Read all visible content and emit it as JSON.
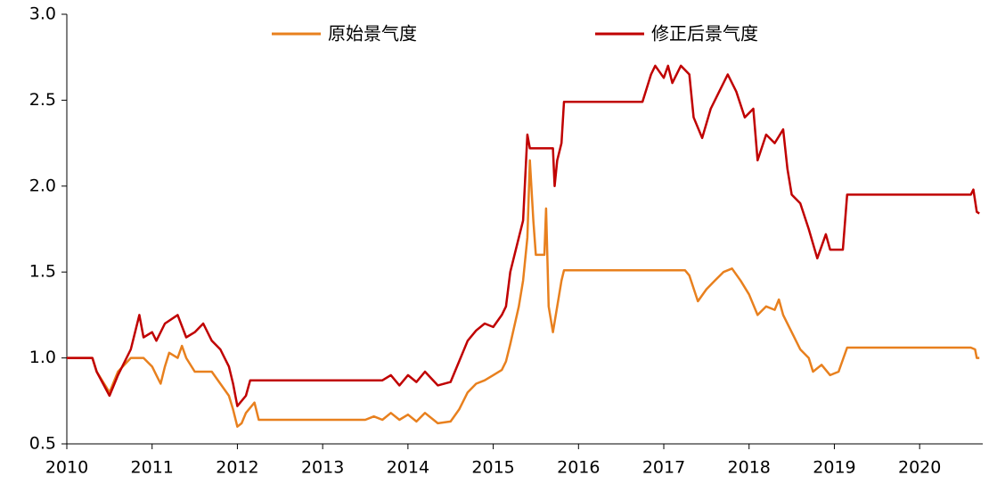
{
  "chart_data": {
    "type": "line",
    "xlim": [
      2010,
      2020.74
    ],
    "xticks": [
      2010,
      2011,
      2012,
      2013,
      2014,
      2015,
      2016,
      2017,
      2018,
      2019,
      2020
    ],
    "ylim": [
      0.5,
      3.0
    ],
    "yticks": [
      {
        "value": 0.5,
        "label": "0.5"
      },
      {
        "value": 1.0,
        "label": "1.0"
      },
      {
        "value": 1.5,
        "label": "1.5"
      },
      {
        "value": 2.0,
        "label": "2.0"
      },
      {
        "value": 2.5,
        "label": "2.5"
      },
      {
        "value": 3.0,
        "label": "3.0"
      }
    ],
    "series": [
      {
        "name": "原始景气度",
        "color": "#e8801e",
        "x": [
          2010.0,
          2010.3,
          2010.35,
          2010.5,
          2010.6,
          2010.75,
          2010.9,
          2011.0,
          2011.05,
          2011.1,
          2011.15,
          2011.2,
          2011.3,
          2011.35,
          2011.4,
          2011.5,
          2011.7,
          2011.8,
          2011.9,
          2011.95,
          2012.0,
          2012.05,
          2012.1,
          2012.2,
          2012.25,
          2013.5,
          2013.6,
          2013.7,
          2013.8,
          2013.9,
          2014.0,
          2014.1,
          2014.2,
          2014.35,
          2014.5,
          2014.6,
          2014.7,
          2014.8,
          2014.9,
          2015.0,
          2015.1,
          2015.15,
          2015.2,
          2015.3,
          2015.35,
          2015.4,
          2015.43,
          2015.47,
          2015.5,
          2015.6,
          2015.62,
          2015.65,
          2015.7,
          2015.75,
          2015.8,
          2015.83,
          2017.25,
          2017.3,
          2017.4,
          2017.5,
          2017.6,
          2017.7,
          2017.8,
          2017.9,
          2018.0,
          2018.1,
          2018.2,
          2018.3,
          2018.35,
          2018.4,
          2018.5,
          2018.6,
          2018.7,
          2018.75,
          2018.85,
          2018.95,
          2019.05,
          2019.15,
          2020.6,
          2020.65,
          2020.67,
          2020.7
        ],
        "values": [
          1.0,
          1.0,
          0.92,
          0.8,
          0.92,
          1.0,
          1.0,
          0.95,
          0.9,
          0.85,
          0.95,
          1.03,
          1.0,
          1.07,
          1.0,
          0.92,
          0.92,
          0.85,
          0.78,
          0.7,
          0.6,
          0.62,
          0.68,
          0.74,
          0.64,
          0.64,
          0.66,
          0.64,
          0.68,
          0.64,
          0.67,
          0.63,
          0.68,
          0.62,
          0.63,
          0.7,
          0.8,
          0.85,
          0.87,
          0.9,
          0.93,
          0.98,
          1.08,
          1.3,
          1.45,
          1.7,
          2.15,
          1.8,
          1.6,
          1.6,
          1.87,
          1.3,
          1.15,
          1.3,
          1.45,
          1.51,
          1.51,
          1.48,
          1.33,
          1.4,
          1.45,
          1.5,
          1.52,
          1.45,
          1.37,
          1.25,
          1.3,
          1.28,
          1.34,
          1.25,
          1.15,
          1.05,
          1.0,
          0.92,
          0.96,
          0.9,
          0.92,
          1.06,
          1.06,
          1.05,
          1.0,
          1.0
        ]
      },
      {
        "name": "修正后景气度",
        "color": "#c00000",
        "x": [
          2010.0,
          2010.3,
          2010.35,
          2010.5,
          2010.6,
          2010.75,
          2010.85,
          2010.9,
          2011.0,
          2011.05,
          2011.15,
          2011.3,
          2011.4,
          2011.5,
          2011.6,
          2011.7,
          2011.8,
          2011.9,
          2011.95,
          2012.0,
          2012.1,
          2012.15,
          2013.7,
          2013.8,
          2013.9,
          2014.0,
          2014.1,
          2014.2,
          2014.35,
          2014.5,
          2014.6,
          2014.7,
          2014.8,
          2014.9,
          2015.0,
          2015.1,
          2015.15,
          2015.2,
          2015.3,
          2015.35,
          2015.4,
          2015.43,
          2015.7,
          2015.72,
          2015.75,
          2015.8,
          2015.83,
          2016.75,
          2016.85,
          2016.9,
          2017.0,
          2017.05,
          2017.1,
          2017.2,
          2017.3,
          2017.35,
          2017.45,
          2017.55,
          2017.65,
          2017.75,
          2017.85,
          2017.95,
          2018.05,
          2018.1,
          2018.2,
          2018.3,
          2018.4,
          2018.45,
          2018.5,
          2018.6,
          2018.7,
          2018.8,
          2018.9,
          2018.95,
          2019.1,
          2019.15,
          2020.6,
          2020.63,
          2020.67,
          2020.7
        ],
        "values": [
          1.0,
          1.0,
          0.92,
          0.78,
          0.9,
          1.05,
          1.25,
          1.12,
          1.15,
          1.1,
          1.2,
          1.25,
          1.12,
          1.15,
          1.2,
          1.1,
          1.05,
          0.95,
          0.85,
          0.72,
          0.78,
          0.87,
          0.87,
          0.9,
          0.84,
          0.9,
          0.86,
          0.92,
          0.84,
          0.86,
          0.98,
          1.1,
          1.16,
          1.2,
          1.18,
          1.25,
          1.3,
          1.5,
          1.7,
          1.8,
          2.3,
          2.22,
          2.22,
          2.0,
          2.15,
          2.25,
          2.49,
          2.49,
          2.65,
          2.7,
          2.63,
          2.7,
          2.6,
          2.7,
          2.65,
          2.4,
          2.28,
          2.45,
          2.55,
          2.65,
          2.55,
          2.4,
          2.45,
          2.15,
          2.3,
          2.25,
          2.33,
          2.1,
          1.95,
          1.9,
          1.75,
          1.58,
          1.72,
          1.63,
          1.63,
          1.95,
          1.95,
          1.98,
          1.85,
          1.84
        ]
      }
    ]
  }
}
